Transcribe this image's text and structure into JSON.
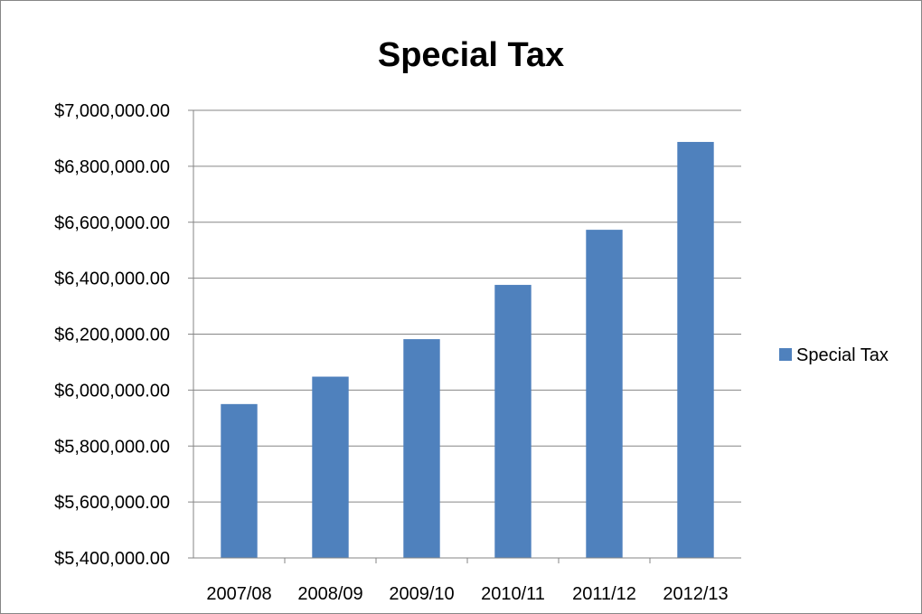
{
  "chart_data": {
    "type": "bar",
    "title": "Special Tax",
    "categories": [
      "2007/08",
      "2008/09",
      "2009/10",
      "2010/11",
      "2011/12",
      "2012/13"
    ],
    "series": [
      {
        "name": "Special Tax",
        "color": "#4F81BD",
        "values": [
          5950000,
          6048000,
          6182000,
          6376000,
          6573000,
          6887000
        ]
      }
    ],
    "ylim": [
      5400000,
      7000000
    ],
    "y_ticks": [
      "$5,400,000.00",
      "$5,600,000.00",
      "$5,800,000.00",
      "$6,000,000.00",
      "$6,200,000.00",
      "$6,400,000.00",
      "$6,600,000.00",
      "$6,800,000.00",
      "$7,000,000.00"
    ],
    "grid": true,
    "legend_position": "right"
  }
}
